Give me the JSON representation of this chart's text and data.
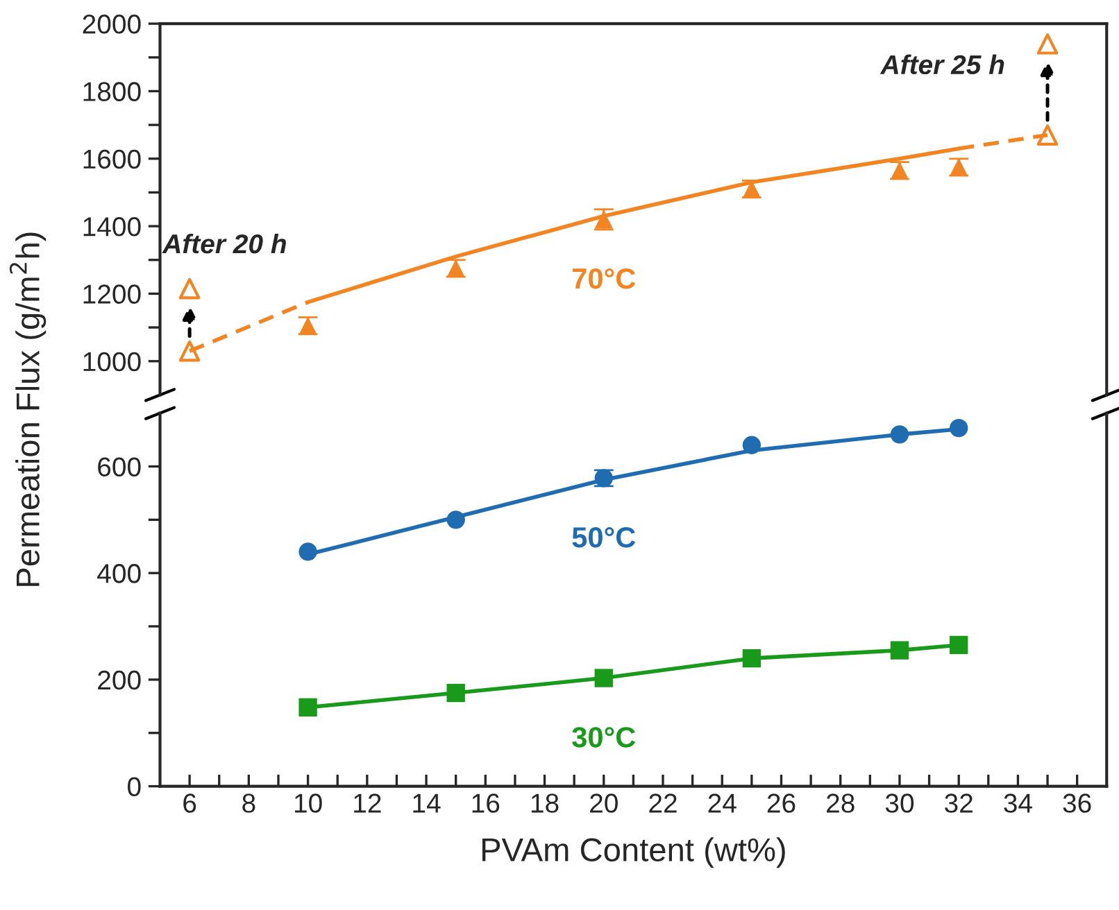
{
  "chart_data": [
    {
      "type": "scatter",
      "ylabel": "Permeation Flux (g/m$^{2}$h)",
      "tick_labels": "y",
      "grid": false,
      "legend": false,
      "xlim": [
        5,
        37
      ],
      "ylim": [
        900,
        2000
      ],
      "yticks": [
        1000,
        {
          "value": 1100,
          "label": null
        },
        1200,
        {
          "value": 1300,
          "label": null
        },
        1400,
        {
          "value": 1500,
          "label": null
        },
        1600,
        {
          "value": 1700,
          "label": null
        },
        1800,
        {
          "value": 1900,
          "label": null
        },
        2000
      ],
      "series": [
        {
          "name": "70°C",
          "marker": "triangle",
          "color": "#f28522",
          "x": [
            10,
            15,
            20,
            25,
            30,
            32
          ],
          "values": [
            1105,
            1275,
            1420,
            1510,
            1565,
            1575
          ],
          "errors": [
            25,
            25,
            30,
            25,
            25,
            25
          ]
        },
        {
          "type": "line",
          "line_style": "solid",
          "color": "#f28522",
          "x": [
            10,
            15,
            20,
            25,
            30,
            32
          ],
          "values": [
            1175,
            1310,
            1430,
            1530,
            1600,
            1630
          ]
        },
        {
          "type": "line",
          "line_style": "dashed",
          "color": "#f28522",
          "x": [
            6,
            10
          ],
          "values": [
            1030,
            1175
          ]
        },
        {
          "type": "line",
          "line_style": "dashed",
          "color": "#f28522",
          "x": [
            32,
            35
          ],
          "values": [
            1630,
            1670
          ]
        },
        {
          "marker": "triangle",
          "color": "#f28522",
          "x": [
            6,
            35
          ],
          "values": [
            1030,
            1670
          ]
        },
        {
          "marker": "triangle",
          "color": "#f28522",
          "x": [
            6,
            35
          ],
          "values": [
            1215,
            1940
          ]
        }
      ],
      "annotations": [
        {
          "text": "After 20 h",
          "x": 6,
          "y": 1215
        },
        {
          "text": "After 25 h",
          "x": 35,
          "y": 1940
        }
      ]
    },
    {
      "type": "scatter",
      "xlabel": "PVAm Content (wt%)",
      "grid": false,
      "legend": false,
      "xlim": [
        5,
        37
      ],
      "xticks": [
        6,
        {
          "value": 7,
          "label": null
        },
        8,
        {
          "value": 9,
          "label": null
        },
        10,
        {
          "value": 11,
          "label": null
        },
        12,
        {
          "value": 13,
          "label": null
        },
        14,
        {
          "value": 15,
          "label": null
        },
        16,
        {
          "value": 17,
          "label": null
        },
        18,
        {
          "value": 19,
          "label": null
        },
        20,
        {
          "value": 21,
          "label": null
        },
        22,
        {
          "value": 23,
          "label": null
        },
        24,
        {
          "value": 25,
          "label": null
        },
        26,
        {
          "value": 27,
          "label": null
        },
        28,
        {
          "value": 29,
          "label": null
        },
        30,
        {
          "value": 31,
          "label": null
        },
        32,
        {
          "value": 33,
          "label": null
        },
        34,
        {
          "value": 35,
          "label": null
        },
        36
      ],
      "ylim": [
        0,
        700
      ],
      "yticks": [
        0,
        {
          "value": 100,
          "label": null
        },
        200,
        {
          "value": 300,
          "label": null
        },
        400,
        {
          "value": 500,
          "label": null
        },
        600
      ],
      "series": [
        {
          "name": "50°C",
          "marker": "circle",
          "color": "#1f6cb0",
          "x": [
            10,
            15,
            20,
            25,
            30,
            32
          ],
          "values": [
            440,
            500,
            578,
            640,
            660,
            672
          ],
          "errors": [
            null,
            null,
            15,
            null,
            null,
            null
          ]
        },
        {
          "type": "line",
          "line_style": "solid",
          "color": "#1f6cb0",
          "x": [
            10,
            15,
            20,
            25,
            30,
            32
          ],
          "values": [
            435,
            505,
            575,
            630,
            660,
            670
          ]
        },
        {
          "name": "30°C",
          "marker": "square",
          "color": "#1a9a1a",
          "x": [
            10,
            15,
            20,
            25,
            30,
            32
          ],
          "values": [
            148,
            175,
            203,
            240,
            255,
            265
          ]
        },
        {
          "type": "line",
          "line_style": "solid",
          "color": "#1a9a1a",
          "x": [
            10,
            15,
            20,
            25,
            30,
            32
          ],
          "values": [
            148,
            175,
            203,
            240,
            255,
            265
          ]
        }
      ]
    }
  ]
}
